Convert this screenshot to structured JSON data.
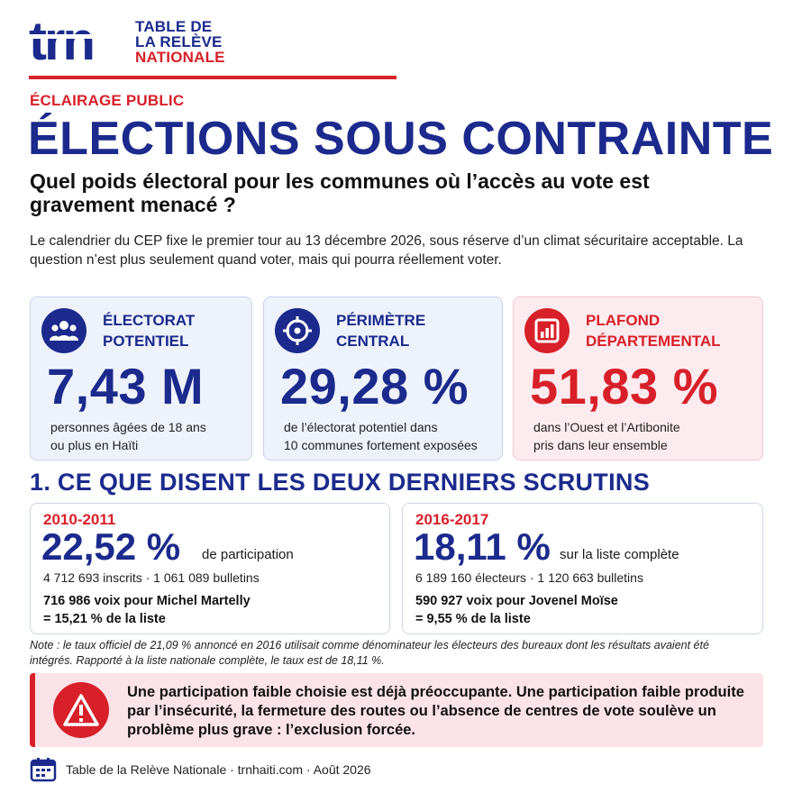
{
  "logo": {
    "mark": "trn",
    "line1": "TABLE DE",
    "line2": "LA RELÈVE",
    "line3": "NATIONALE"
  },
  "header": {
    "section_tag": "ÉCLAIRAGE PUBLIC",
    "title": "ÉLECTIONS SOUS CONTRAINTE",
    "subtitle": "Quel poids électoral pour les communes où l’accès au vote est gravement menacé ?",
    "intro": "Le calendrier du CEP fixe le premier tour au 13 décembre 2026, sous réserve d’un climat sécuritaire acceptable. La question n’est plus seulement quand voter, mais qui pourra réellement voter."
  },
  "kpis": [
    {
      "icon": "people-icon",
      "label_line1": "ÉLECTORAT",
      "label_line2": "POTENTIEL",
      "value": "7,43 M",
      "desc_line1": "personnes âgées de 18 ans",
      "desc_line2": "ou plus en Haïti"
    },
    {
      "icon": "target-icon",
      "label_line1": "PÉRIMÈTRE",
      "label_line2": "CENTRAL",
      "value": "29,28 %",
      "desc_line1": "de l’électorat potentiel dans",
      "desc_line2": "10 communes fortement exposées"
    },
    {
      "icon": "bar-chart-icon",
      "label_line1": "PLAFOND",
      "label_line2": "DÉPARTEMENTAL",
      "value": "51,83 %",
      "desc_line1": "dans l’Ouest et l’Artibonite",
      "desc_line2": "pris dans leur ensemble"
    }
  ],
  "section1": {
    "heading": "1. CE QUE DISENT LES DEUX DERNIERS SCRUTINS"
  },
  "scrutins": [
    {
      "years": "2010-2011",
      "rate": "22,52 %",
      "rate_label": "de participation",
      "stats": "4 712 693 inscrits  ·  1 061 089 bulletins",
      "votes_line1": "716 986 voix pour Michel Martelly",
      "votes_line2": "= 15,21 % de la liste"
    },
    {
      "years": "2016-2017",
      "rate": "18,11 %",
      "rate_label": "sur la liste complète",
      "stats": "6 189 160 électeurs  ·  1 120 663 bulletins",
      "votes_line1": "590 927 voix pour Jovenel Moïse",
      "votes_line2": "= 9,55 % de la liste"
    }
  ],
  "note": "Note : le taux officiel de 21,09 % annoncé en 2016 utilisait comme dénominateur les électeurs des bureaux dont les résultats avaient été intégrés. Rapporté à la liste nationale complète, le taux est de 18,11 %.",
  "alert": {
    "icon": "warning-icon",
    "text": "Une participation faible choisie est déjà préoccupante. Une participation faible produite par l’insécurité, la fermeture des routes ou l’absence de centres de vote soulève un problème plus grave : l’exclusion forcée."
  },
  "footer": {
    "icon": "calendar-icon",
    "text": "Table de la Relève Nationale  ·  trnhaiti.com  ·  Août 2026"
  },
  "colors": {
    "navy": "#1b2a8c",
    "red": "#d8202a",
    "card_blue_bg": "#eef2fb",
    "card_red_bg": "#fcecef",
    "alert_bg": "#fbe3e7"
  }
}
